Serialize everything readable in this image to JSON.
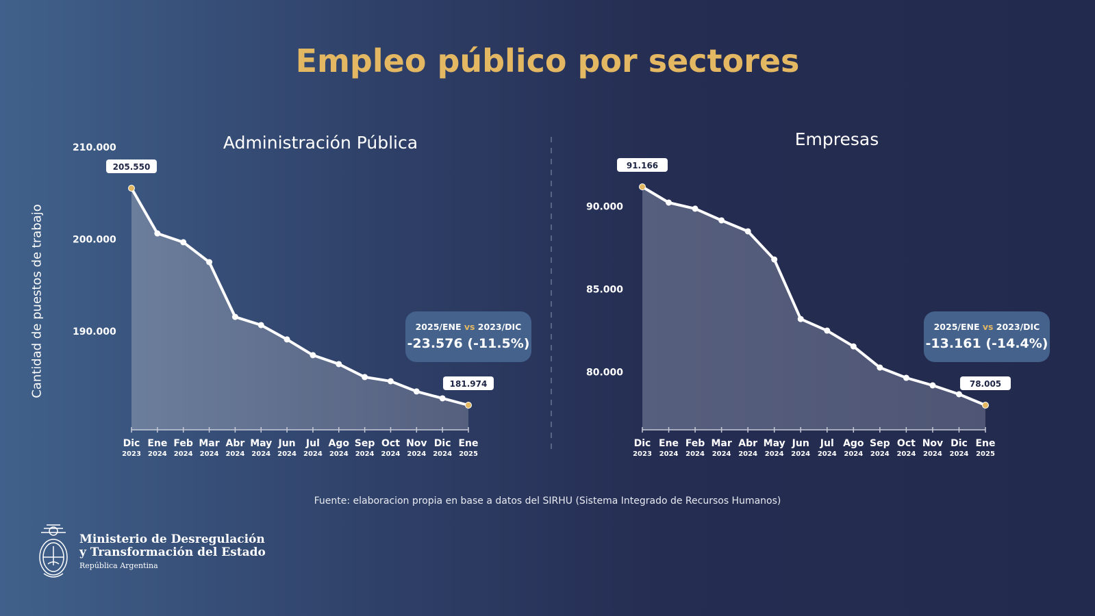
{
  "title": "Empleo público por sectores",
  "ylabel": "Cantidad de puestos de trabajo",
  "source": "Fuente: elaboracion propia en base a datos del SIRHU (Sistema Integrado de Recursos Humanos)",
  "logo": {
    "line1": "Ministerio de Desregulación",
    "line2": "y Transformación del Estado",
    "line3": "República Argentina"
  },
  "colors": {
    "title": "#e4b862",
    "line": "#ffffff",
    "endpoint": "#e4b862",
    "callout": "#44628c"
  },
  "chart_data": [
    {
      "type": "area",
      "title": "Administración Pública",
      "categories": [
        [
          "Dic",
          "2023"
        ],
        [
          "Ene",
          "2024"
        ],
        [
          "Feb",
          "2024"
        ],
        [
          "Mar",
          "2024"
        ],
        [
          "Abr",
          "2024"
        ],
        [
          "May",
          "2024"
        ],
        [
          "Jun",
          "2024"
        ],
        [
          "Jul",
          "2024"
        ],
        [
          "Ago",
          "2024"
        ],
        [
          "Sep",
          "2024"
        ],
        [
          "Oct",
          "2024"
        ],
        [
          "Nov",
          "2024"
        ],
        [
          "Dic",
          "2024"
        ],
        [
          "Ene",
          "2025"
        ]
      ],
      "values": [
        205550,
        200640,
        199680,
        197520,
        191570,
        190680,
        189120,
        187410,
        186440,
        185030,
        184580,
        183470,
        182720,
        181974
      ],
      "yticks": [
        "210.000",
        "200.000",
        "190.000"
      ],
      "ytick_values": [
        210000,
        200000,
        190000
      ],
      "first_label": "205.550",
      "last_label": "181.974",
      "callout": {
        "left": "2025/ENE",
        "vs": "vs",
        "right": "2023/DIC",
        "value": "-23.576 (-11.5%)"
      }
    },
    {
      "type": "area",
      "title": "Empresas",
      "categories": [
        [
          "Dic",
          "2023"
        ],
        [
          "Ene",
          "2024"
        ],
        [
          "Feb",
          "2024"
        ],
        [
          "Mar",
          "2024"
        ],
        [
          "Abr",
          "2024"
        ],
        [
          "May",
          "2024"
        ],
        [
          "Jun",
          "2024"
        ],
        [
          "Jul",
          "2024"
        ],
        [
          "Ago",
          "2024"
        ],
        [
          "Sep",
          "2024"
        ],
        [
          "Oct",
          "2024"
        ],
        [
          "Nov",
          "2024"
        ],
        [
          "Dic",
          "2024"
        ],
        [
          "Ene",
          "2025"
        ]
      ],
      "values": [
        91166,
        90217,
        89850,
        89145,
        88485,
        86790,
        83200,
        82500,
        81550,
        80275,
        79655,
        79200,
        78665,
        78005
      ],
      "yticks": [
        "90.000",
        "85.000",
        "80.000"
      ],
      "ytick_values": [
        90000,
        85000,
        80000
      ],
      "first_label": "91.166",
      "last_label": "78.005",
      "callout": {
        "left": "2025/ENE",
        "vs": "vs",
        "right": "2023/DIC",
        "value": "-13.161 (-14.4%)"
      }
    }
  ]
}
